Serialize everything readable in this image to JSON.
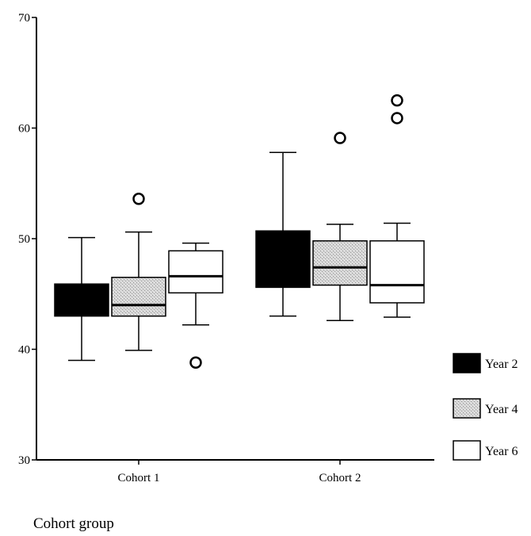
{
  "chart_data": {
    "type": "boxplot",
    "title": "",
    "xlabel": "Cohort group",
    "ylabel": "",
    "ylim": [
      30,
      70
    ],
    "yticks": [
      30,
      40,
      50,
      60,
      70
    ],
    "categories": [
      "Cohort 1",
      "Cohort 2"
    ],
    "legend_position": "right",
    "grid": false,
    "series": [
      {
        "name": "Year 2",
        "color": "#000000",
        "fill": "solid",
        "boxes": [
          {
            "whisker_low": 39.0,
            "q1": 43.0,
            "median": 44.3,
            "q3": 45.9,
            "whisker_high": 50.1,
            "outliers": []
          },
          {
            "whisker_low": 43.0,
            "q1": 45.6,
            "median": 46.0,
            "q3": 50.7,
            "whisker_high": 57.8,
            "outliers": []
          }
        ]
      },
      {
        "name": "Year 4",
        "color": "#c8c8c8",
        "fill": "stipple",
        "boxes": [
          {
            "whisker_low": 39.9,
            "q1": 43.0,
            "median": 44.0,
            "q3": 46.5,
            "whisker_high": 50.6,
            "outliers": [
              53.6
            ]
          },
          {
            "whisker_low": 42.6,
            "q1": 45.8,
            "median": 47.4,
            "q3": 49.8,
            "whisker_high": 51.3,
            "outliers": [
              59.1
            ]
          }
        ]
      },
      {
        "name": "Year 6",
        "color": "#ffffff",
        "fill": "none",
        "boxes": [
          {
            "whisker_low": 42.2,
            "q1": 45.1,
            "median": 46.6,
            "q3": 48.9,
            "whisker_high": 49.6,
            "outliers": [
              38.8
            ]
          },
          {
            "whisker_low": 42.9,
            "q1": 44.2,
            "median": 45.8,
            "q3": 49.8,
            "whisker_high": 51.4,
            "outliers": [
              60.9,
              62.5
            ]
          }
        ]
      }
    ]
  }
}
